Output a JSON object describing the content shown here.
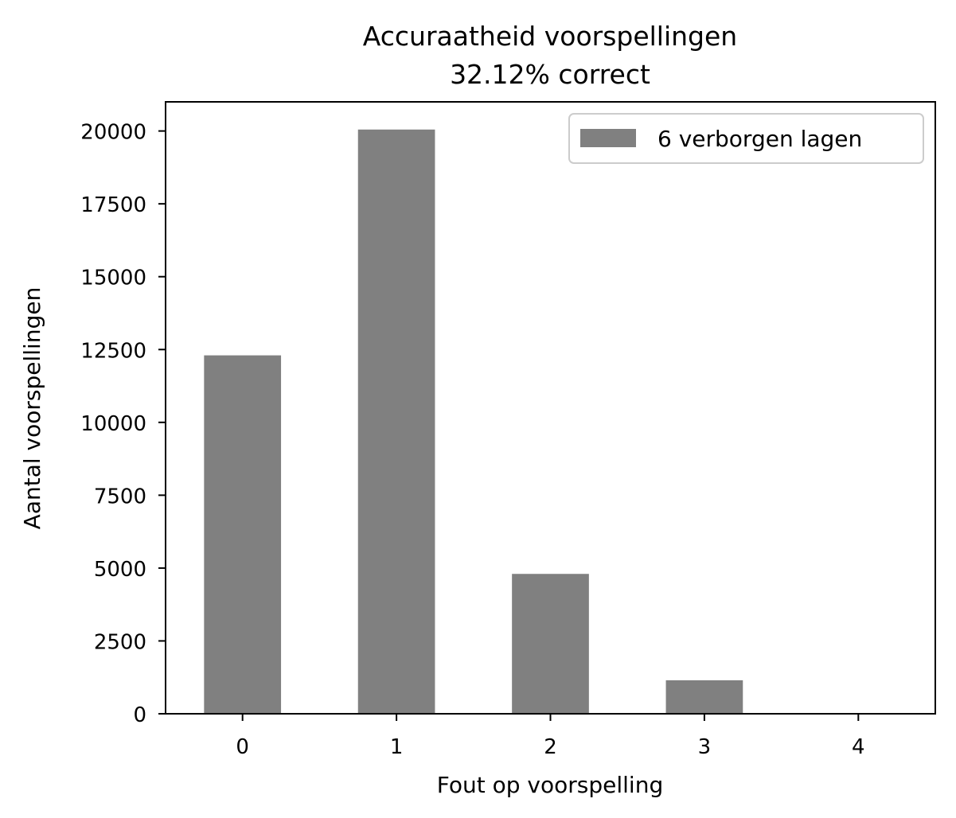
{
  "chart_data": {
    "type": "bar",
    "title_line1": "Accuraatheid voorspellingen",
    "title_line2": "32.12% correct",
    "xlabel": "Fout op voorspelling",
    "ylabel": "Aantal voorspellingen",
    "categories": [
      "0",
      "1",
      "2",
      "3",
      "4"
    ],
    "series": [
      {
        "name": "6 verborgen lagen",
        "color": "#808080",
        "values": [
          12300,
          20050,
          4800,
          1150,
          0
        ]
      }
    ],
    "ylim": [
      0,
      21000
    ],
    "xlim": [
      -0.5,
      4.5
    ],
    "yticks": [
      0,
      2500,
      5000,
      7500,
      10000,
      12500,
      15000,
      17500,
      20000
    ],
    "ytick_labels": [
      "0",
      "2500",
      "5000",
      "7500",
      "10000",
      "12500",
      "15000",
      "17500",
      "20000"
    ],
    "grid": false,
    "legend_position": "top-right"
  }
}
